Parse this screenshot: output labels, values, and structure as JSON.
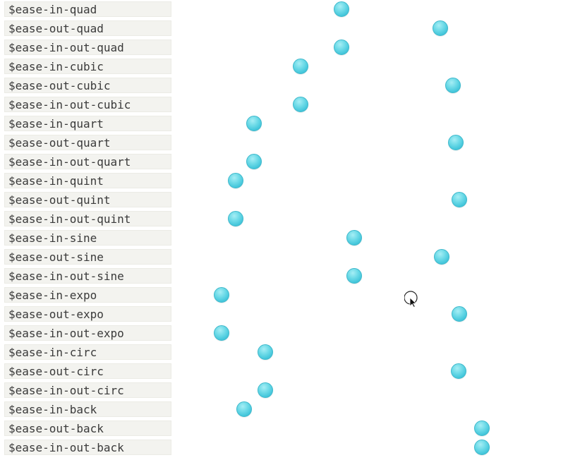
{
  "colors": {
    "label_bg": "#f3f3ef",
    "label_text": "#3a3a3a",
    "ball": "#5fd3e3"
  },
  "cursor": {
    "icon": "arrow-cursor-icon"
  },
  "easings": [
    {
      "label": "$ease-in-quad",
      "progress": 0.497
    },
    {
      "label": "$ease-out-quad",
      "progress": 0.886
    },
    {
      "label": "$ease-in-out-quad",
      "progress": 0.497
    },
    {
      "label": "$ease-in-cubic",
      "progress": 0.335
    },
    {
      "label": "$ease-out-cubic",
      "progress": 0.935
    },
    {
      "label": "$ease-in-out-cubic",
      "progress": 0.335
    },
    {
      "label": "$ease-in-quart",
      "progress": 0.154
    },
    {
      "label": "$ease-out-quart",
      "progress": 0.946
    },
    {
      "label": "$ease-in-out-quart",
      "progress": 0.154
    },
    {
      "label": "$ease-in-quint",
      "progress": 0.081
    },
    {
      "label": "$ease-out-quint",
      "progress": 0.962
    },
    {
      "label": "$ease-in-out-quint",
      "progress": 0.081
    },
    {
      "label": "$ease-in-sine",
      "progress": 0.546
    },
    {
      "label": "$ease-out-sine",
      "progress": 0.892
    },
    {
      "label": "$ease-in-out-sine",
      "progress": 0.546
    },
    {
      "label": "$ease-in-expo",
      "progress": 0.024
    },
    {
      "label": "$ease-out-expo",
      "progress": 0.962
    },
    {
      "label": "$ease-in-out-expo",
      "progress": 0.024
    },
    {
      "label": "$ease-in-circ",
      "progress": 0.197
    },
    {
      "label": "$ease-out-circ",
      "progress": 0.957
    },
    {
      "label": "$ease-in-out-circ",
      "progress": 0.197
    },
    {
      "label": "$ease-in-back",
      "progress": 0.113
    },
    {
      "label": "$ease-out-back",
      "progress": 1.049
    },
    {
      "label": "$ease-in-out-back",
      "progress": 1.049
    }
  ]
}
